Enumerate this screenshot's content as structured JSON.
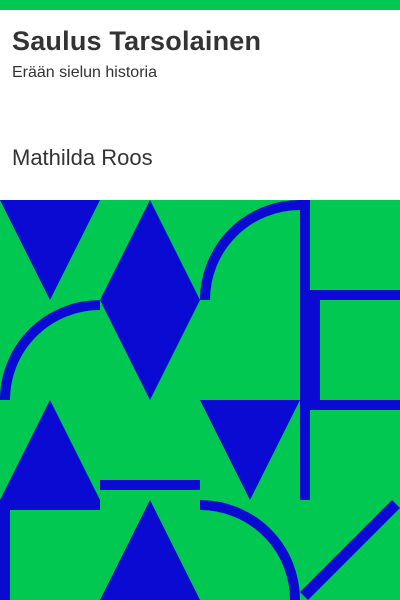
{
  "book": {
    "title": "Saulus Tarsolainen",
    "subtitle": "Erään sielun historia",
    "author": "Mathilda Roos"
  },
  "colors": {
    "accent_green": "#00c850",
    "pattern_blue": "#0a0ad2",
    "text": "#333333",
    "background": "#ffffff"
  }
}
